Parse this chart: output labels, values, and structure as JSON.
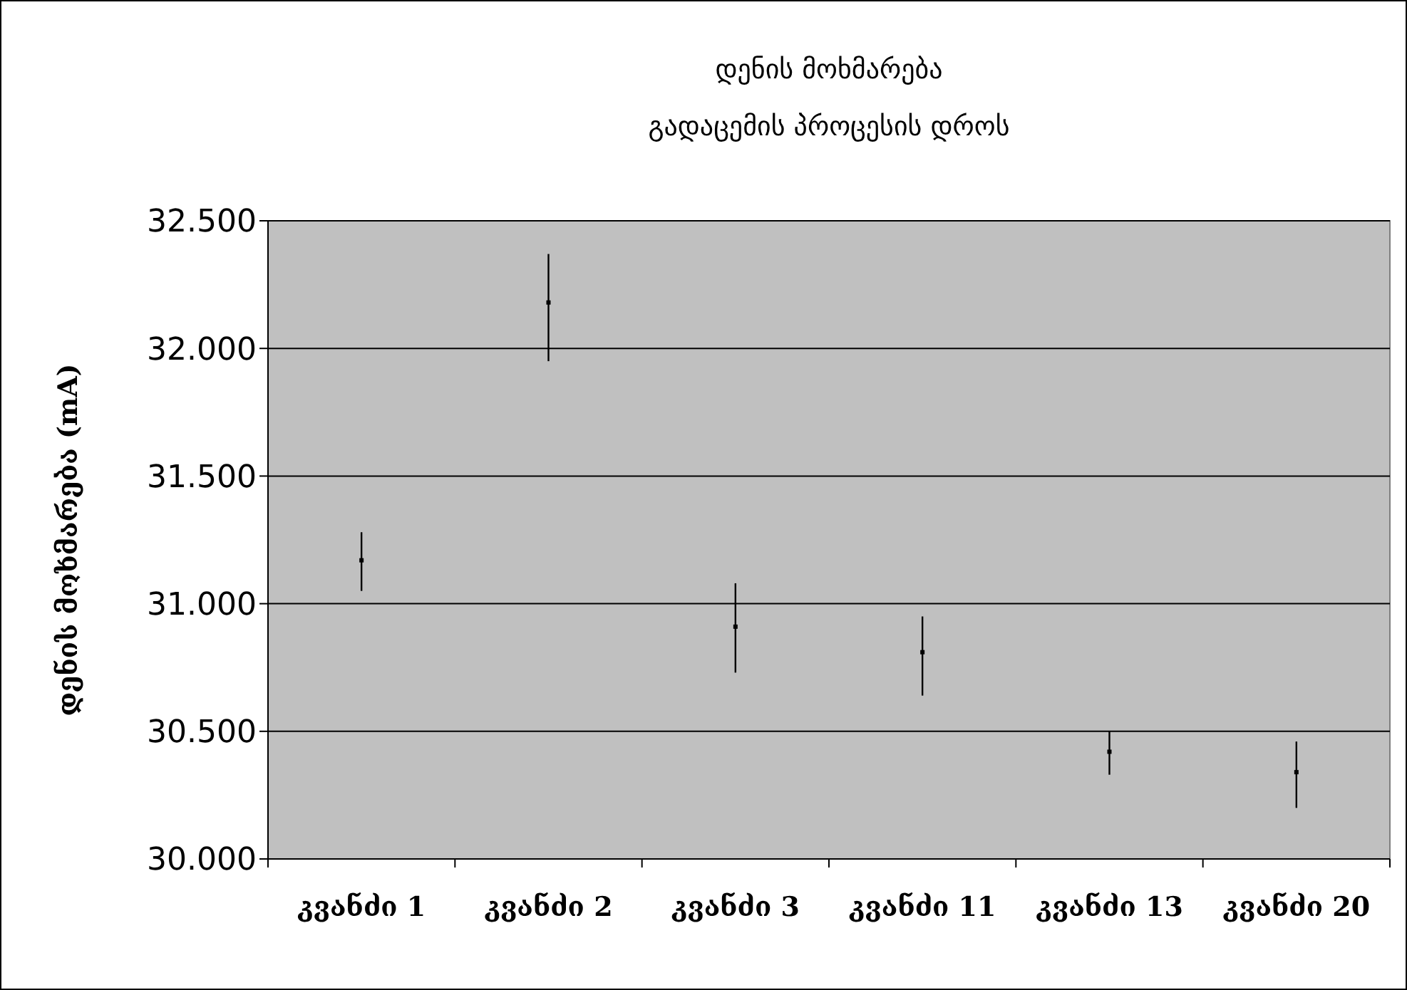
{
  "chart_data": {
    "type": "scatter",
    "title": "დენის მოხმარება",
    "subtitle": "გადაცემის პროცესის დროს",
    "ylabel": "დენის მოხმარება (mA)",
    "categories": [
      "კვანძი 1",
      "კვანძი 2",
      "კვანძი 3",
      "კვანძი 11",
      "კვანძი 13",
      "კვანძი 20"
    ],
    "series": [
      {
        "color": "#000000",
        "values": [
          31.17,
          32.18,
          30.91,
          30.81,
          30.42,
          30.34
        ],
        "errors": [
          [
            31.05,
            31.28
          ],
          [
            31.95,
            32.37
          ],
          [
            30.73,
            31.08
          ],
          [
            30.64,
            30.95
          ],
          [
            30.33,
            30.5
          ],
          [
            30.2,
            30.46
          ]
        ]
      }
    ],
    "ylim": [
      30,
      32.5
    ],
    "yticks": [
      {
        "value": 30,
        "label": "30.000"
      },
      {
        "value": 30.5,
        "label": "30.500"
      },
      {
        "value": 31,
        "label": "31.000"
      },
      {
        "value": 31.5,
        "label": "31.500"
      },
      {
        "value": 32,
        "label": "32.000"
      },
      {
        "value": 32.5,
        "label": "32.500"
      }
    ],
    "grid": "y",
    "marker": "square"
  }
}
